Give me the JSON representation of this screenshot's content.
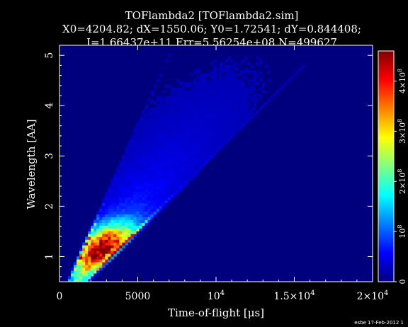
{
  "chart_data": {
    "type": "heatmap",
    "title_lines": [
      "TOFlambda2 [TOFlambda2.sim]",
      "X0=4204.82; dX=1550.06; Y0=1.72541; dY=0.844408;",
      "I=1.66437e+11 Err=5.56254e+08 N=499627"
    ],
    "xlabel": "Time-of-flight [μs]",
    "ylabel": "Wavelength [AA]",
    "xlim": [
      0,
      20000
    ],
    "ylim": [
      0.5,
      5.2
    ],
    "x_ticks": [
      {
        "value": 0,
        "label": "0"
      },
      {
        "value": 5000,
        "label": "5000"
      },
      {
        "value": 10000,
        "label": "10",
        "sup": "4"
      },
      {
        "value": 15000,
        "label": "1.5×10",
        "sup": "4"
      },
      {
        "value": 20000,
        "label": "2×10",
        "sup": "4"
      }
    ],
    "y_ticks": [
      {
        "value": 1,
        "label": "1"
      },
      {
        "value": 2,
        "label": "2"
      },
      {
        "value": 3,
        "label": "3"
      },
      {
        "value": 4,
        "label": "4"
      },
      {
        "value": 5,
        "label": "5"
      }
    ],
    "colorbar": {
      "range": [
        0,
        460000000.0
      ],
      "ticks": [
        {
          "value": 0,
          "label": "0"
        },
        {
          "value": 100000000.0,
          "label": "10",
          "sup": "8"
        },
        {
          "value": 200000000.0,
          "label": "2×10",
          "sup": "8"
        },
        {
          "value": 300000000.0,
          "label": "3×10",
          "sup": "8"
        },
        {
          "value": 400000000.0,
          "label": "4×10",
          "sup": "8"
        }
      ]
    },
    "colormap": [
      "#00007f",
      "#0000ff",
      "#007fff",
      "#00ffff",
      "#7fff7f",
      "#ffff00",
      "#ff7f00",
      "#ff0000",
      "#7f0000"
    ],
    "band_model": {
      "description_free": true,
      "t_per_wavelength_min": 1400,
      "t_per_wavelength_max": 3250,
      "wavelength_peak": 1.15,
      "t_peak_ratio_center": 0.5
    }
  },
  "footer": {
    "stamp": "esbe 17-Feb-2012 1"
  }
}
